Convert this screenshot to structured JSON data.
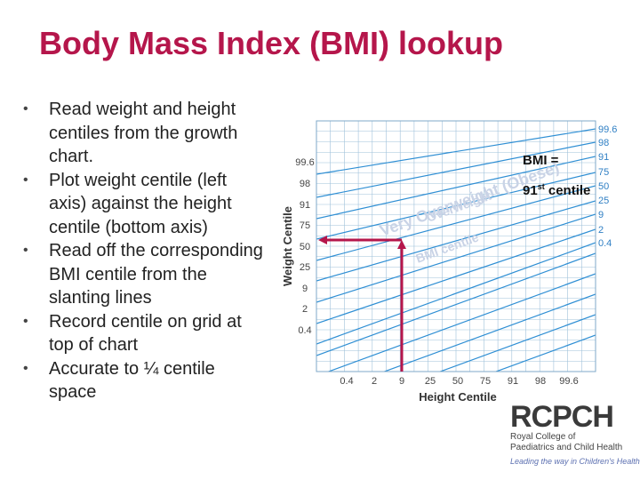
{
  "slide": {
    "title": "Body Mass Index (BMI) lookup",
    "bullets": [
      [
        "Read weight and height",
        "centiles from the growth",
        "chart."
      ],
      [
        "Plot weight centile (left",
        "axis) against the height",
        "centile (bottom axis)"
      ],
      [
        "Read off the corresponding",
        "BMI centile from the",
        "slanting lines"
      ],
      [
        "Record centile on grid at",
        "top of chart"
      ],
      [
        "Accurate to ¼ centile",
        "space"
      ]
    ]
  },
  "chart": {
    "y_axis_label": "Weight Centile",
    "x_axis_label": "Height Centile",
    "y_ticks": [
      "99.6",
      "98",
      "91",
      "75",
      "50",
      "25",
      "9",
      "2",
      "0.4"
    ],
    "x_ticks": [
      "0.4",
      "2",
      "9",
      "25",
      "50",
      "75",
      "91",
      "98",
      "99.6"
    ],
    "bmi_centile_labels": [
      "99.6",
      "98",
      "91",
      "75",
      "50",
      "25",
      "9",
      "2",
      "0.4"
    ],
    "band_labels": [
      "Very Overweight (Obese)",
      "Overweight",
      "BMI centile"
    ],
    "annotation_bmi": "BMI =",
    "annotation_centile_value": "91",
    "annotation_centile_suffix": "st",
    "annotation_centile_word": "centile",
    "plotted_point": {
      "height_centile": "9",
      "weight_centile": "50"
    },
    "colors": {
      "grid": "#9fc1da",
      "slant": "#2f8fd4",
      "tick_text": "#2f7fc4",
      "marker": "#b5164b",
      "band_text": "#c9d3e6"
    }
  },
  "logo": {
    "wordmark": "RCPCH",
    "line1": "Royal College of",
    "line2": "Paediatrics and Child Health",
    "tagline": "Leading the way in Children's Health"
  }
}
